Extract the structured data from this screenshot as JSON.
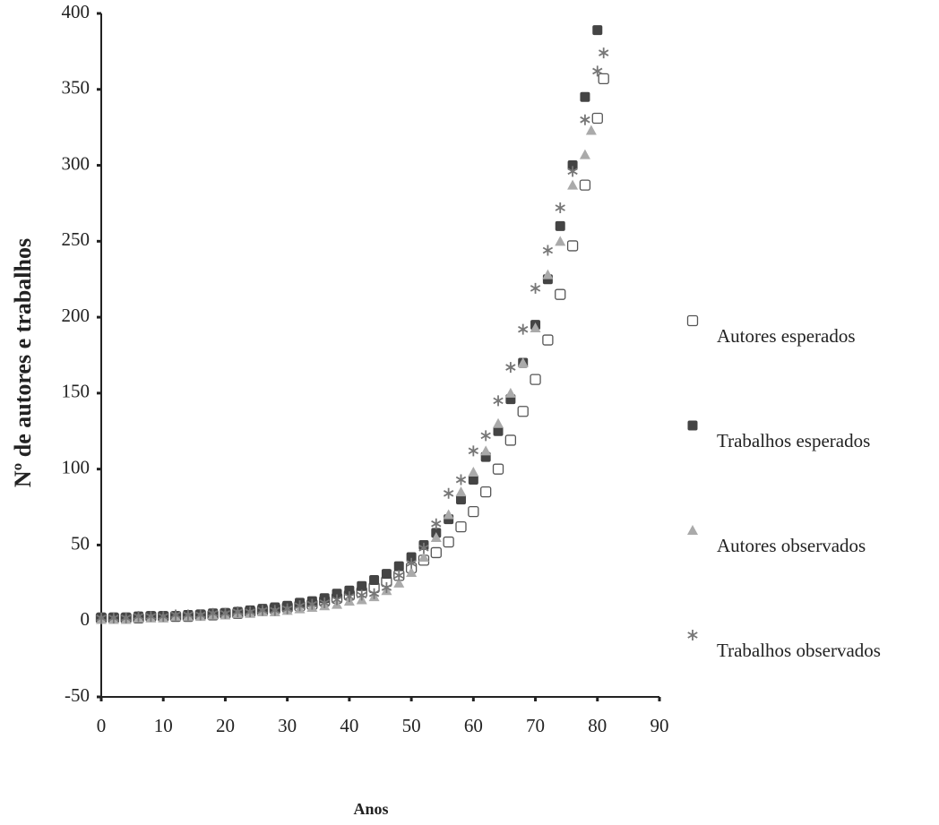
{
  "chart_data": {
    "type": "scatter",
    "ylabel": "Nº de autores e trabalhos",
    "xlabel": "Anos",
    "xlim": [
      0,
      90
    ],
    "xticks": [
      0,
      10,
      20,
      30,
      40,
      50,
      60,
      70,
      80,
      90
    ],
    "ylim": [
      -50,
      400
    ],
    "yticks": [
      -50,
      0,
      50,
      100,
      150,
      200,
      250,
      300,
      350,
      400
    ],
    "legend": "right",
    "series": [
      {
        "name": "Autores esperados",
        "color": "#555555",
        "marker": "square-open",
        "x": [
          0,
          2,
          4,
          6,
          8,
          10,
          12,
          14,
          16,
          18,
          20,
          22,
          24,
          26,
          28,
          30,
          32,
          34,
          36,
          38,
          40,
          42,
          44,
          46,
          48,
          50,
          52,
          54,
          56,
          58,
          60,
          62,
          64,
          66,
          68,
          70,
          72,
          74,
          76,
          78,
          80,
          81
        ],
        "y": [
          2,
          2,
          2,
          2,
          3,
          3,
          3,
          3,
          4,
          4,
          5,
          5,
          6,
          7,
          8,
          9,
          10,
          11,
          13,
          15,
          17,
          19,
          22,
          26,
          30,
          35,
          40,
          45,
          52,
          62,
          72,
          85,
          100,
          119,
          138,
          159,
          185,
          215,
          247,
          287,
          331,
          357
        ]
      },
      {
        "name": "Trabalhos esperados",
        "color": "#444444",
        "marker": "square",
        "x": [
          0,
          2,
          4,
          6,
          8,
          10,
          12,
          14,
          16,
          18,
          20,
          22,
          24,
          26,
          28,
          30,
          32,
          34,
          36,
          38,
          40,
          42,
          44,
          46,
          48,
          50,
          52,
          54,
          56,
          58,
          60,
          62,
          64,
          66,
          68,
          70,
          72,
          74,
          76,
          78,
          80
        ],
        "y": [
          2,
          2,
          2,
          3,
          3,
          3,
          3,
          4,
          4,
          5,
          5,
          6,
          7,
          8,
          9,
          10,
          12,
          13,
          15,
          18,
          20,
          23,
          27,
          31,
          36,
          42,
          50,
          58,
          67,
          80,
          93,
          108,
          125,
          146,
          170,
          195,
          225,
          260,
          300,
          345,
          389
        ]
      },
      {
        "name": "Autores observados",
        "color": "#aaaaaa",
        "marker": "triangle",
        "x": [
          0,
          2,
          4,
          6,
          8,
          10,
          12,
          14,
          16,
          18,
          20,
          22,
          24,
          26,
          28,
          30,
          32,
          34,
          36,
          38,
          40,
          42,
          44,
          46,
          48,
          50,
          52,
          54,
          56,
          58,
          60,
          62,
          64,
          66,
          68,
          70,
          72,
          74,
          76,
          78,
          79
        ],
        "y": [
          1,
          1,
          1,
          2,
          2,
          2,
          3,
          3,
          3,
          4,
          4,
          5,
          5,
          6,
          6,
          7,
          8,
          9,
          10,
          11,
          13,
          14,
          16,
          20,
          25,
          32,
          42,
          55,
          70,
          85,
          98,
          112,
          130,
          150,
          170,
          193,
          228,
          250,
          287,
          307,
          323
        ]
      },
      {
        "name": "Trabalhos observados",
        "color": "#777777",
        "marker": "star",
        "x": [
          0,
          2,
          4,
          6,
          8,
          10,
          12,
          14,
          16,
          18,
          20,
          22,
          24,
          26,
          28,
          30,
          32,
          34,
          36,
          38,
          40,
          42,
          44,
          46,
          48,
          50,
          52,
          54,
          56,
          58,
          60,
          62,
          64,
          66,
          68,
          70,
          72,
          74,
          76,
          78,
          80,
          81
        ],
        "y": [
          2,
          2,
          2,
          3,
          3,
          3,
          4,
          4,
          4,
          5,
          5,
          6,
          6,
          7,
          7,
          8,
          10,
          11,
          12,
          14,
          16,
          17,
          18,
          22,
          30,
          38,
          48,
          64,
          84,
          93,
          112,
          122,
          145,
          167,
          192,
          219,
          244,
          272,
          296,
          330,
          362,
          374
        ]
      }
    ]
  }
}
